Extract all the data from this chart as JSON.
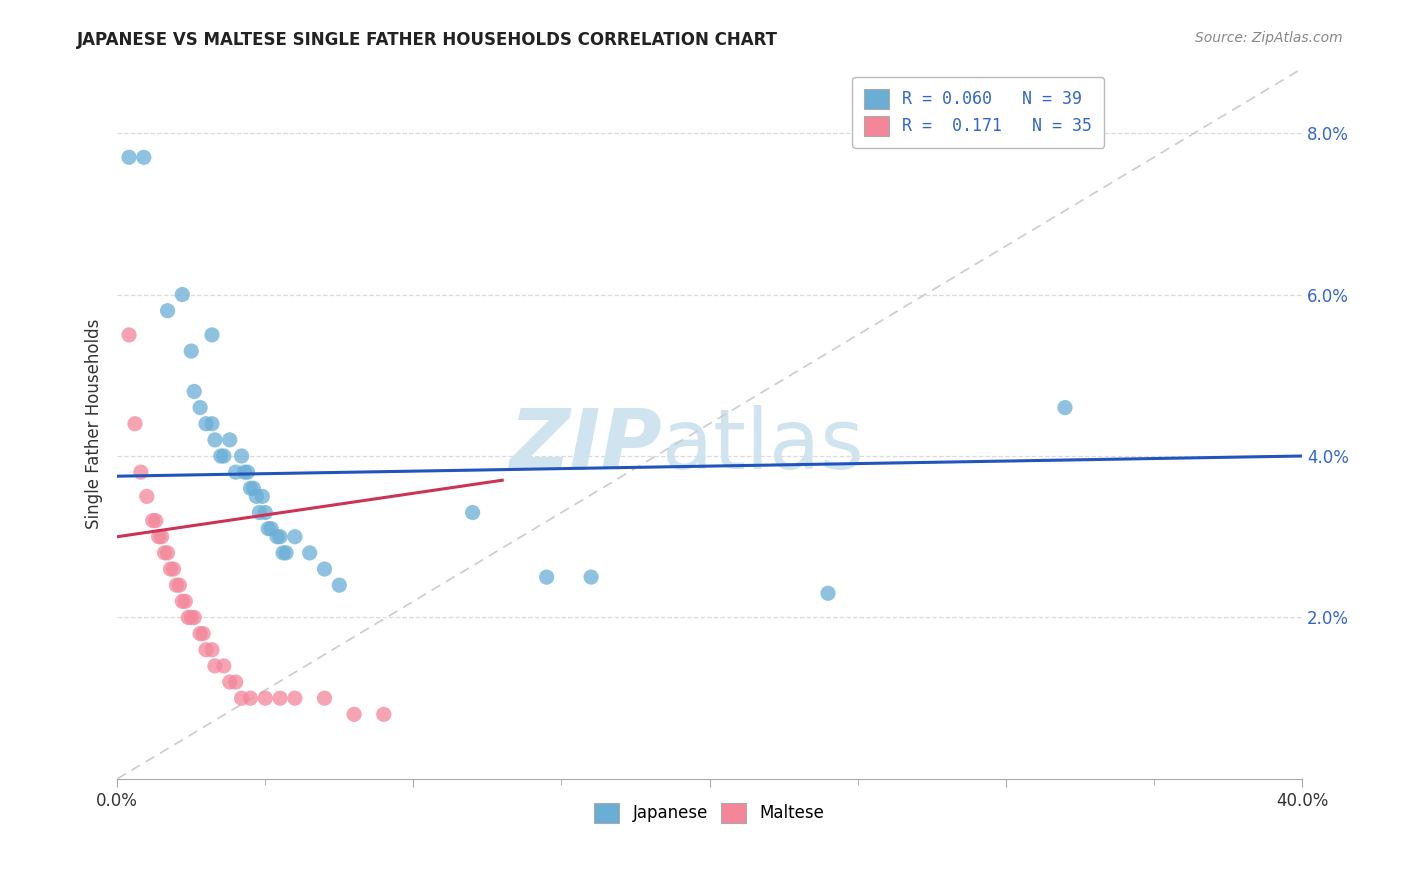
{
  "title": "JAPANESE VS MALTESE SINGLE FATHER HOUSEHOLDS CORRELATION CHART",
  "source_text": "Source: ZipAtlas.com",
  "ylabel": "Single Father Households",
  "xlim": [
    0.0,
    0.4
  ],
  "ylim": [
    0.0,
    0.088
  ],
  "xticks_major": [
    0.0,
    0.1,
    0.2,
    0.3,
    0.4
  ],
  "xticks_minor": [
    0.05,
    0.15,
    0.25,
    0.35
  ],
  "yticks": [
    0.02,
    0.04,
    0.06,
    0.08
  ],
  "yticklabels": [
    "2.0%",
    "4.0%",
    "6.0%",
    "8.0%"
  ],
  "legend_entries": [
    {
      "label": "R = 0.060   N = 39",
      "color": "#aec6e8"
    },
    {
      "label": "R =  0.171   N = 35",
      "color": "#f4b8c1"
    }
  ],
  "japanese_color": "#6aaed6",
  "maltese_color": "#f4869a",
  "japanese_scatter": [
    [
      0.004,
      0.077
    ],
    [
      0.009,
      0.077
    ],
    [
      0.017,
      0.058
    ],
    [
      0.022,
      0.06
    ],
    [
      0.025,
      0.053
    ],
    [
      0.032,
      0.055
    ],
    [
      0.026,
      0.048
    ],
    [
      0.028,
      0.046
    ],
    [
      0.03,
      0.044
    ],
    [
      0.032,
      0.044
    ],
    [
      0.033,
      0.042
    ],
    [
      0.035,
      0.04
    ],
    [
      0.036,
      0.04
    ],
    [
      0.038,
      0.042
    ],
    [
      0.04,
      0.038
    ],
    [
      0.042,
      0.04
    ],
    [
      0.043,
      0.038
    ],
    [
      0.044,
      0.038
    ],
    [
      0.045,
      0.036
    ],
    [
      0.046,
      0.036
    ],
    [
      0.047,
      0.035
    ],
    [
      0.048,
      0.033
    ],
    [
      0.049,
      0.035
    ],
    [
      0.05,
      0.033
    ],
    [
      0.051,
      0.031
    ],
    [
      0.052,
      0.031
    ],
    [
      0.054,
      0.03
    ],
    [
      0.055,
      0.03
    ],
    [
      0.056,
      0.028
    ],
    [
      0.057,
      0.028
    ],
    [
      0.06,
      0.03
    ],
    [
      0.065,
      0.028
    ],
    [
      0.07,
      0.026
    ],
    [
      0.075,
      0.024
    ],
    [
      0.12,
      0.033
    ],
    [
      0.145,
      0.025
    ],
    [
      0.16,
      0.025
    ],
    [
      0.24,
      0.023
    ],
    [
      0.32,
      0.046
    ]
  ],
  "maltese_scatter": [
    [
      0.004,
      0.055
    ],
    [
      0.006,
      0.044
    ],
    [
      0.008,
      0.038
    ],
    [
      0.01,
      0.035
    ],
    [
      0.012,
      0.032
    ],
    [
      0.013,
      0.032
    ],
    [
      0.014,
      0.03
    ],
    [
      0.015,
      0.03
    ],
    [
      0.016,
      0.028
    ],
    [
      0.017,
      0.028
    ],
    [
      0.018,
      0.026
    ],
    [
      0.019,
      0.026
    ],
    [
      0.02,
      0.024
    ],
    [
      0.021,
      0.024
    ],
    [
      0.022,
      0.022
    ],
    [
      0.023,
      0.022
    ],
    [
      0.024,
      0.02
    ],
    [
      0.025,
      0.02
    ],
    [
      0.026,
      0.02
    ],
    [
      0.028,
      0.018
    ],
    [
      0.029,
      0.018
    ],
    [
      0.03,
      0.016
    ],
    [
      0.032,
      0.016
    ],
    [
      0.033,
      0.014
    ],
    [
      0.036,
      0.014
    ],
    [
      0.038,
      0.012
    ],
    [
      0.04,
      0.012
    ],
    [
      0.042,
      0.01
    ],
    [
      0.045,
      0.01
    ],
    [
      0.05,
      0.01
    ],
    [
      0.055,
      0.01
    ],
    [
      0.06,
      0.01
    ],
    [
      0.07,
      0.01
    ],
    [
      0.08,
      0.008
    ],
    [
      0.09,
      0.008
    ]
  ],
  "japanese_line": [
    [
      0.0,
      0.0375
    ],
    [
      0.4,
      0.04
    ]
  ],
  "maltese_line": [
    [
      0.0,
      0.03
    ],
    [
      0.13,
      0.037
    ]
  ],
  "diagonal_line": [
    [
      0.0,
      0.0
    ],
    [
      0.4,
      0.088
    ]
  ],
  "diagonal_dashed_color": "#cccccc",
  "background_color": "#ffffff",
  "grid_color": "#d8d8d8",
  "watermark_text1": "ZIP",
  "watermark_text2": "atlas",
  "watermark_color": "#d0e4f0"
}
